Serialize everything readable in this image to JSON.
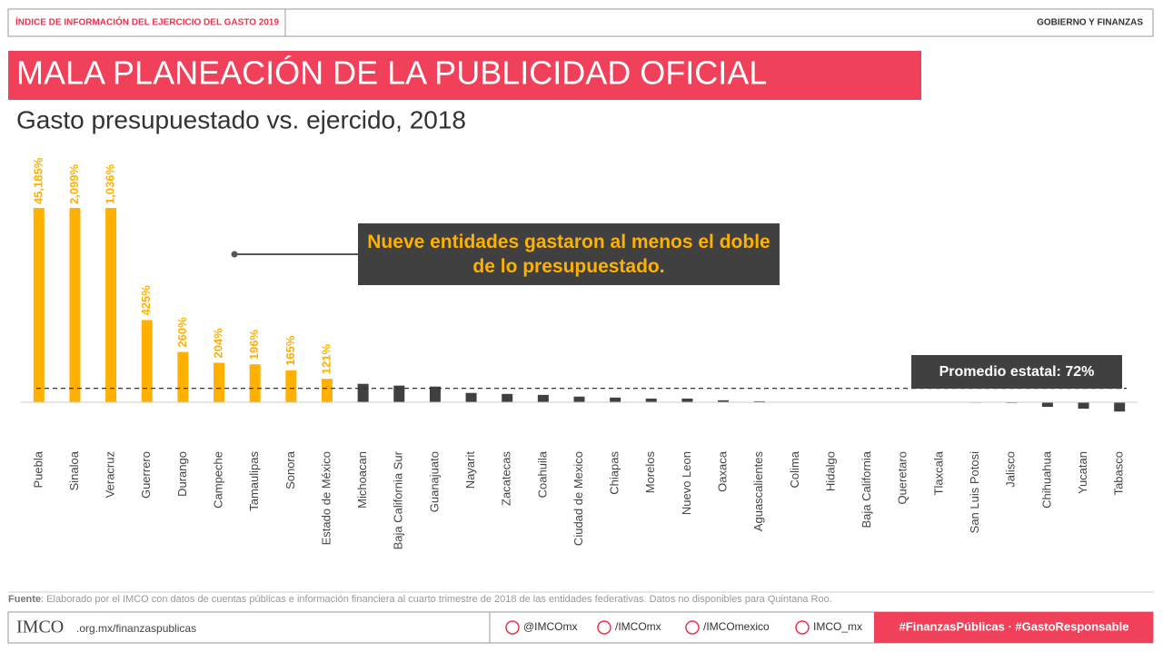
{
  "header": {
    "left": "ÍNDICE DE INFORMACIÓN DEL EJERCICIO DEL GASTO 2019",
    "right": "GOBIERNO Y FINANZAS"
  },
  "chart_data": {
    "type": "bar",
    "title": "MALA PLANEACIÓN DE LA PUBLICIDAD OFICIAL",
    "subtitle": "Gasto presupuestado vs. ejercido, 2018",
    "annotation": "Nueve entidades gastaron al menos el doble de lo presupuestado.",
    "reference_line": {
      "value": 72,
      "label": "Promedio estatal: 72%"
    },
    "categories": [
      "Puebla",
      "Sinaloa",
      "Veracruz",
      "Guerrero",
      "Durango",
      "Campeche",
      "Tamaulipas",
      "Sonora",
      "Estado de México",
      "Michoacan",
      "Baja California Sur",
      "Guanajuato",
      "Nayarit",
      "Zacatecas",
      "Coahuila",
      "Ciudad de Mexico",
      "Chiapas",
      "Morelos",
      "Nuevo Leon",
      "Oaxaca",
      "Aguascalientes",
      "Colima",
      "Hidalgo",
      "Baja California",
      "Queretaro",
      "Tlaxcala",
      "San Luis Potosi",
      "Jalisco",
      "Chihuahua",
      "Yucatan",
      "Tabasco"
    ],
    "values": [
      45185,
      2099,
      1036,
      425,
      260,
      204,
      196,
      165,
      121,
      95,
      86,
      81,
      48,
      43,
      38,
      29,
      24,
      19,
      19,
      10,
      5,
      2,
      1,
      0,
      0,
      -1,
      -3,
      -4,
      -24,
      -33,
      -48
    ],
    "value_labels": [
      "45,185%",
      "2,099%",
      "1,036%",
      "425%",
      "260%",
      "204%",
      "196%",
      "165%",
      "121%",
      null,
      null,
      null,
      null,
      null,
      null,
      null,
      null,
      null,
      null,
      null,
      null,
      null,
      null,
      null,
      null,
      null,
      null,
      null,
      null,
      null,
      null
    ],
    "colors": [
      "#ffb000",
      "#ffb000",
      "#ffb000",
      "#ffb000",
      "#ffb000",
      "#ffb000",
      "#ffb000",
      "#ffb000",
      "#ffb000",
      "#404040",
      "#404040",
      "#404040",
      "#404040",
      "#404040",
      "#404040",
      "#404040",
      "#404040",
      "#404040",
      "#404040",
      "#404040",
      "#404040",
      "#404040",
      "#404040",
      "#404040",
      "#404040",
      "#404040",
      "#404040",
      "#404040",
      "#404040",
      "#404040",
      "#404040"
    ],
    "ylim": [
      -50,
      1000
    ]
  },
  "source": {
    "label": "Fuente",
    "text": ": Elaborado por el IMCO con datos de cuentas públicas e información financiera al cuarto trimestre de 2018 de las entidades federativas. Datos no disponibles para Quintana Roo."
  },
  "footer": {
    "logo": "IMCO",
    "url": ".org.mx/finanzaspublicas",
    "twitter": "@IMCOmx",
    "facebook": "/IMCOmx",
    "youtube": "/IMCOmexico",
    "instagram": "IMCO_mx",
    "hashtags": "#FinanzasPúblicas · #GastoResponsable"
  }
}
